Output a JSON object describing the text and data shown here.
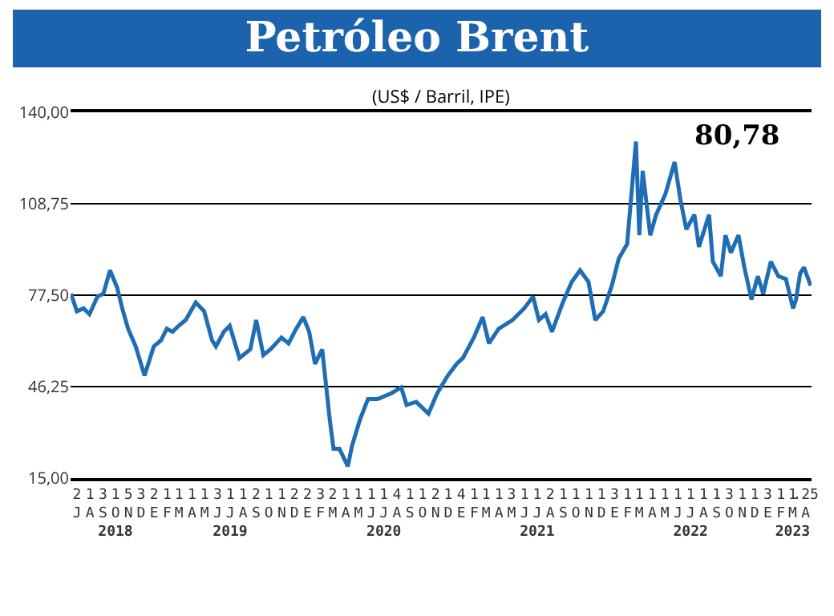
{
  "chart_data": {
    "type": "line",
    "title": "Petróleo Brent",
    "subtitle": "(US$ / Barril, IPE)",
    "annotations": [
      "80,78"
    ],
    "x": [
      "2018-07-02",
      "2018-07-16",
      "2018-08-01",
      "2018-08-15",
      "2018-09-03",
      "2018-09-17",
      "2018-10-03",
      "2018-10-20",
      "2018-11-01",
      "2018-11-15",
      "2018-12-03",
      "2018-12-24",
      "2019-01-02",
      "2019-01-15",
      "2019-02-01",
      "2019-02-15",
      "2019-03-01",
      "2019-03-15",
      "2019-04-01",
      "2019-04-25",
      "2019-05-15",
      "2019-06-03",
      "2019-06-12",
      "2019-07-01",
      "2019-07-15",
      "2019-08-07",
      "2019-09-02",
      "2019-09-16",
      "2019-10-03",
      "2019-10-20",
      "2019-11-15",
      "2019-12-02",
      "2019-12-20",
      "2020-01-06",
      "2020-01-20",
      "2020-02-03",
      "2020-02-20",
      "2020-03-09",
      "2020-03-18",
      "2020-04-01",
      "2020-04-21",
      "2020-05-01",
      "2020-05-20",
      "2020-06-08",
      "2020-07-01",
      "2020-08-03",
      "2020-08-26",
      "2020-09-08",
      "2020-10-01",
      "2020-10-30",
      "2020-11-20",
      "2020-12-15",
      "2021-01-05",
      "2021-01-20",
      "2021-02-15",
      "2021-03-08",
      "2021-03-23",
      "2021-04-15",
      "2021-05-18",
      "2021-06-15",
      "2021-07-06",
      "2021-07-20",
      "2021-08-05",
      "2021-08-20",
      "2021-09-15",
      "2021-10-06",
      "2021-10-26",
      "2021-11-15",
      "2021-12-01",
      "2021-12-20",
      "2022-01-10",
      "2022-01-26",
      "2022-02-15",
      "2022-03-08",
      "2022-03-16",
      "2022-03-24",
      "2022-04-11",
      "2022-04-25",
      "2022-05-17",
      "2022-06-08",
      "2022-06-22",
      "2022-07-06",
      "2022-07-25",
      "2022-08-05",
      "2022-08-29",
      "2022-09-07",
      "2022-09-26",
      "2022-10-07",
      "2022-10-20",
      "2022-11-07",
      "2022-11-21",
      "2022-12-08",
      "2022-12-23",
      "2023-01-05",
      "2023-01-23",
      "2023-02-10",
      "2023-02-28",
      "2023-03-17",
      "2023-03-24",
      "2023-04-03",
      "2023-04-12",
      "2023-04-28"
    ],
    "series": [
      {
        "color": "#1f6db4",
        "values": [
          78,
          72,
          73,
          71,
          77,
          78,
          86,
          80,
          73,
          66,
          60,
          50,
          54,
          60,
          62,
          66,
          65,
          67,
          69,
          75,
          72,
          62,
          60,
          65,
          67,
          56,
          59,
          69,
          57,
          59,
          63,
          61,
          66,
          70,
          65,
          54,
          59,
          35,
          25,
          25,
          19,
          26,
          35,
          42,
          42,
          44,
          46,
          40,
          41,
          37,
          44,
          50,
          54,
          56,
          63,
          70,
          61,
          66,
          69,
          73,
          77,
          69,
          71,
          65,
          75,
          82,
          86,
          82,
          69,
          72,
          81,
          90,
          95,
          130,
          98,
          120,
          98,
          105,
          112,
          123,
          110,
          100,
          105,
          94,
          105,
          89,
          84,
          98,
          92,
          98,
          87,
          76,
          84,
          78,
          89,
          84,
          83,
          73,
          76,
          85,
          87,
          80.78
        ]
      }
    ],
    "xlim": [
      "2018-07-01",
      "2023-04-30"
    ],
    "xticks": [
      {
        "value": "2018-07-16",
        "label": "2\nJ"
      },
      {
        "value": "2018-08-16",
        "label": "1\nA"
      },
      {
        "value": "2018-09-16",
        "label": "3\nS"
      },
      {
        "value": "2018-10-16",
        "label": "1\nO\n2018"
      },
      {
        "value": "2018-11-16",
        "label": "5\nN"
      },
      {
        "value": "2018-12-16",
        "label": "3\nD"
      },
      {
        "value": "2019-01-16",
        "label": "2\nE"
      },
      {
        "value": "2019-02-16",
        "label": "1\nF"
      },
      {
        "value": "2019-03-16",
        "label": "1\nM"
      },
      {
        "value": "2019-04-16",
        "label": "1\nA"
      },
      {
        "value": "2019-05-16",
        "label": "1\nM"
      },
      {
        "value": "2019-06-16",
        "label": "3\nJ"
      },
      {
        "value": "2019-07-16",
        "label": "1\nJ\n2019"
      },
      {
        "value": "2019-08-16",
        "label": "1\nA"
      },
      {
        "value": "2019-09-16",
        "label": "2\nS"
      },
      {
        "value": "2019-10-16",
        "label": "1\nO"
      },
      {
        "value": "2019-11-16",
        "label": "1\nN"
      },
      {
        "value": "2019-12-16",
        "label": "2\nD"
      },
      {
        "value": "2020-01-16",
        "label": "2\nE"
      },
      {
        "value": "2020-02-16",
        "label": "3\nF"
      },
      {
        "value": "2020-03-16",
        "label": "2\nM"
      },
      {
        "value": "2020-04-16",
        "label": "1\nA"
      },
      {
        "value": "2020-05-16",
        "label": "1\nM"
      },
      {
        "value": "2020-06-16",
        "label": "1\nJ"
      },
      {
        "value": "2020-07-16",
        "label": "1\nJ\n2020"
      },
      {
        "value": "2020-08-16",
        "label": "4\nA"
      },
      {
        "value": "2020-09-16",
        "label": "1\nS"
      },
      {
        "value": "2020-10-16",
        "label": "1\nO"
      },
      {
        "value": "2020-11-16",
        "label": "2\nN"
      },
      {
        "value": "2020-12-16",
        "label": "1\nD"
      },
      {
        "value": "2021-01-16",
        "label": "4\nE"
      },
      {
        "value": "2021-02-16",
        "label": "1\nF"
      },
      {
        "value": "2021-03-16",
        "label": "1\nM"
      },
      {
        "value": "2021-04-16",
        "label": "1\nA"
      },
      {
        "value": "2021-05-16",
        "label": "3\nM"
      },
      {
        "value": "2021-06-16",
        "label": "1\nJ"
      },
      {
        "value": "2021-07-16",
        "label": "1\nJ\n2021"
      },
      {
        "value": "2021-08-16",
        "label": "2\nA"
      },
      {
        "value": "2021-09-16",
        "label": "1\nS"
      },
      {
        "value": "2021-10-16",
        "label": "1\nO"
      },
      {
        "value": "2021-11-16",
        "label": "1\nN"
      },
      {
        "value": "2021-12-16",
        "label": "1\nD"
      },
      {
        "value": "2022-01-16",
        "label": "3\nE"
      },
      {
        "value": "2022-02-16",
        "label": "1\nF"
      },
      {
        "value": "2022-03-16",
        "label": "1\nM"
      },
      {
        "value": "2022-04-16",
        "label": "1\nA"
      },
      {
        "value": "2022-05-16",
        "label": "1\nM"
      },
      {
        "value": "2022-06-16",
        "label": "1\nJ"
      },
      {
        "value": "2022-07-16",
        "label": "1\nJ\n2022"
      },
      {
        "value": "2022-08-16",
        "label": "1\nA"
      },
      {
        "value": "2022-09-16",
        "label": "1\nS"
      },
      {
        "value": "2022-10-16",
        "label": "3\nO"
      },
      {
        "value": "2022-11-16",
        "label": "1\nN"
      },
      {
        "value": "2022-12-16",
        "label": "1\nD"
      },
      {
        "value": "2023-01-16",
        "label": "3\nE"
      },
      {
        "value": "2023-02-16",
        "label": "1\nF"
      },
      {
        "value": "2023-03-16",
        "label": "1\nM\n2023"
      },
      {
        "value": "2023-04-16",
        "label": ".25\nA"
      }
    ],
    "ylim": [
      15,
      140
    ],
    "yticks": [
      {
        "value": 15,
        "label": "15,00"
      },
      {
        "value": 46.25,
        "label": "46,25"
      },
      {
        "value": 77.5,
        "label": "77,50"
      },
      {
        "value": 108.75,
        "label": "108,75"
      },
      {
        "value": 140,
        "label": "140,00"
      }
    ],
    "grid": "y",
    "marker": "none",
    "line_style": "solid"
  }
}
